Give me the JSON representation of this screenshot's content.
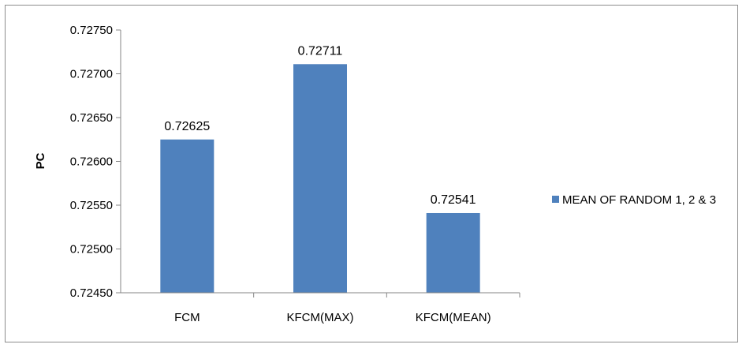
{
  "chart_data": {
    "type": "bar",
    "title": "",
    "xlabel": "",
    "ylabel": "PC",
    "categories": [
      "FCM",
      "KFCM(MAX)",
      "KFCM(MEAN)"
    ],
    "series": [
      {
        "name": "MEAN OF RANDOM 1, 2 & 3",
        "values": [
          0.72625,
          0.72711,
          0.72541
        ],
        "color": "#4f81bd"
      }
    ],
    "data_labels": [
      "0.72625",
      "0.72711",
      "0.72541"
    ],
    "ylim": [
      0.7245,
      0.7275
    ],
    "yticks": [
      "0.72450",
      "0.72500",
      "0.72550",
      "0.72600",
      "0.72650",
      "0.72700",
      "0.72750"
    ],
    "grid": false,
    "legend_position": "right"
  }
}
